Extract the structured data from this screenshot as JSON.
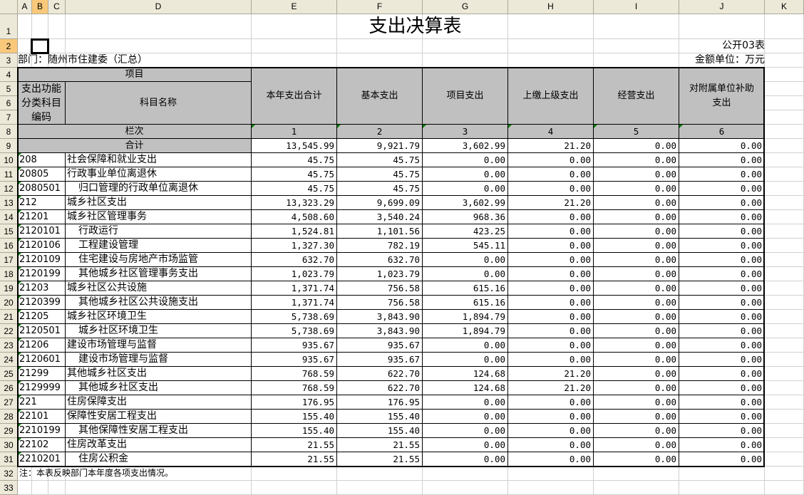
{
  "columns": [
    "A",
    "B",
    "C",
    "D",
    "E",
    "F",
    "G",
    "H",
    "I",
    "J",
    "K"
  ],
  "selected_cell": "B2",
  "title": "支出决算表",
  "form_no": "公开03表",
  "department": "部门：随州市住建委（汇总）",
  "unit": "金额单位：万元",
  "headers": {
    "item": "项目",
    "code": "支出功能分类科目编码",
    "name": "科目名称",
    "row_label": "栏次",
    "total_label": "合计",
    "cols": [
      "本年支出合计",
      "基本支出",
      "项目支出",
      "上缴上级支出",
      "经营支出",
      "对附属单位补助支出"
    ],
    "col_nums": [
      "1",
      "2",
      "3",
      "4",
      "5",
      "6"
    ]
  },
  "total": [
    "13,545.99",
    "9,921.79",
    "3,602.99",
    "21.20",
    "0.00",
    "0.00"
  ],
  "rows": [
    {
      "code": "208",
      "name": "社会保障和就业支出",
      "indent": false,
      "values": [
        "45.75",
        "45.75",
        "0.00",
        "0.00",
        "0.00",
        "0.00"
      ]
    },
    {
      "code": "20805",
      "name": "行政事业单位离退休",
      "indent": false,
      "values": [
        "45.75",
        "45.75",
        "0.00",
        "0.00",
        "0.00",
        "0.00"
      ]
    },
    {
      "code": "2080501",
      "name": "归口管理的行政单位离退休",
      "indent": true,
      "values": [
        "45.75",
        "45.75",
        "0.00",
        "0.00",
        "0.00",
        "0.00"
      ]
    },
    {
      "code": "212",
      "name": "城乡社区支出",
      "indent": false,
      "values": [
        "13,323.29",
        "9,699.09",
        "3,602.99",
        "21.20",
        "0.00",
        "0.00"
      ]
    },
    {
      "code": "21201",
      "name": "城乡社区管理事务",
      "indent": false,
      "values": [
        "4,508.60",
        "3,540.24",
        "968.36",
        "0.00",
        "0.00",
        "0.00"
      ]
    },
    {
      "code": "2120101",
      "name": "行政运行",
      "indent": true,
      "values": [
        "1,524.81",
        "1,101.56",
        "423.25",
        "0.00",
        "0.00",
        "0.00"
      ]
    },
    {
      "code": "2120106",
      "name": "工程建设管理",
      "indent": true,
      "values": [
        "1,327.30",
        "782.19",
        "545.11",
        "0.00",
        "0.00",
        "0.00"
      ]
    },
    {
      "code": "2120109",
      "name": "住宅建设与房地产市场监管",
      "indent": true,
      "values": [
        "632.70",
        "632.70",
        "0.00",
        "0.00",
        "0.00",
        "0.00"
      ]
    },
    {
      "code": "2120199",
      "name": "其他城乡社区管理事务支出",
      "indent": true,
      "values": [
        "1,023.79",
        "1,023.79",
        "0.00",
        "0.00",
        "0.00",
        "0.00"
      ]
    },
    {
      "code": "21203",
      "name": "城乡社区公共设施",
      "indent": false,
      "values": [
        "1,371.74",
        "756.58",
        "615.16",
        "0.00",
        "0.00",
        "0.00"
      ]
    },
    {
      "code": "2120399",
      "name": "其他城乡社区公共设施支出",
      "indent": true,
      "values": [
        "1,371.74",
        "756.58",
        "615.16",
        "0.00",
        "0.00",
        "0.00"
      ]
    },
    {
      "code": "21205",
      "name": "城乡社区环境卫生",
      "indent": false,
      "values": [
        "5,738.69",
        "3,843.90",
        "1,894.79",
        "0.00",
        "0.00",
        "0.00"
      ]
    },
    {
      "code": "2120501",
      "name": "城乡社区环境卫生",
      "indent": true,
      "values": [
        "5,738.69",
        "3,843.90",
        "1,894.79",
        "0.00",
        "0.00",
        "0.00"
      ]
    },
    {
      "code": "21206",
      "name": "建设市场管理与监督",
      "indent": false,
      "values": [
        "935.67",
        "935.67",
        "0.00",
        "0.00",
        "0.00",
        "0.00"
      ]
    },
    {
      "code": "2120601",
      "name": "建设市场管理与监督",
      "indent": true,
      "values": [
        "935.67",
        "935.67",
        "0.00",
        "0.00",
        "0.00",
        "0.00"
      ]
    },
    {
      "code": "21299",
      "name": "其他城乡社区支出",
      "indent": false,
      "values": [
        "768.59",
        "622.70",
        "124.68",
        "21.20",
        "0.00",
        "0.00"
      ]
    },
    {
      "code": "2129999",
      "name": "其他城乡社区支出",
      "indent": true,
      "values": [
        "768.59",
        "622.70",
        "124.68",
        "21.20",
        "0.00",
        "0.00"
      ]
    },
    {
      "code": "221",
      "name": "住房保障支出",
      "indent": false,
      "values": [
        "176.95",
        "176.95",
        "0.00",
        "0.00",
        "0.00",
        "0.00"
      ]
    },
    {
      "code": "22101",
      "name": "保障性安居工程支出",
      "indent": false,
      "values": [
        "155.40",
        "155.40",
        "0.00",
        "0.00",
        "0.00",
        "0.00"
      ]
    },
    {
      "code": "2210199",
      "name": "其他保障性安居工程支出",
      "indent": true,
      "values": [
        "155.40",
        "155.40",
        "0.00",
        "0.00",
        "0.00",
        "0.00"
      ]
    },
    {
      "code": "22102",
      "name": "住房改革支出",
      "indent": false,
      "values": [
        "21.55",
        "21.55",
        "0.00",
        "0.00",
        "0.00",
        "0.00"
      ]
    },
    {
      "code": "2210201",
      "name": "住房公积金",
      "indent": true,
      "values": [
        "21.55",
        "21.55",
        "0.00",
        "0.00",
        "0.00",
        "0.00"
      ]
    }
  ],
  "note": "注：本表反映部门本年度各项支出情况。"
}
